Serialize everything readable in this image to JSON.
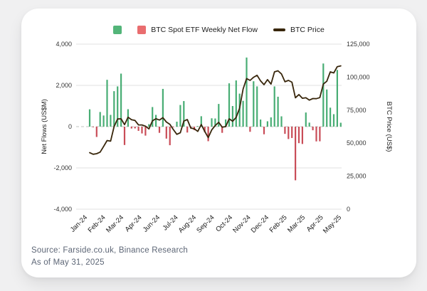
{
  "page": {
    "background_color": "#f0f0f1",
    "card_background": "#ffffff"
  },
  "legend": {
    "flow_label": "BTC Spot ETF Weekly Net Flow",
    "price_label": "BTC Price",
    "positive_color": "#53b579",
    "negative_color": "#e96d6f",
    "bar_positive_color": "#48ad74",
    "bar_negative_color": "#c94d58",
    "price_line_color": "#38260b"
  },
  "footer": {
    "source": "Source: Farside.co.uk, Binance Research",
    "as_of": "As of May 31, 2025"
  },
  "chart_data": {
    "type": "bar",
    "title": "",
    "grid": "horizontal",
    "legend_position": "top-center",
    "x_tick_labels": [
      "Jan-24",
      "Feb-24",
      "Mar-24",
      "Apr-24",
      "Jun-24",
      "Jul-24",
      "Aug-24",
      "Sep-24",
      "Oct-24",
      "Nov-24",
      "Dec-24",
      "Feb-25",
      "Mar-25",
      "Apr-25",
      "May-25"
    ],
    "left_axis": {
      "title": "Net Flows (US$M)",
      "min": -4000,
      "max": 4000,
      "tick_values": [
        4000,
        2000,
        0,
        -2000,
        -4000
      ],
      "tick_labels": [
        "4,000",
        "2,000",
        "0",
        "-2,000",
        "-4,000"
      ]
    },
    "right_axis": {
      "title": "BTC Price (US$)",
      "min": 0,
      "max": 125000,
      "tick_values": [
        125000,
        100000,
        75000,
        50000,
        25000,
        0
      ],
      "tick_labels": [
        "125,000",
        "100,000",
        "75,000",
        "50,000",
        "25,000",
        "0"
      ]
    },
    "series": [
      {
        "name": "BTC Spot ETF Weekly Net Flow",
        "type": "bar",
        "axis": "left",
        "unit": "US$M",
        "values": [
          840,
          -30,
          -500,
          710,
          540,
          2270,
          570,
          1720,
          1950,
          2570,
          -890,
          845,
          -90,
          -85,
          -205,
          -330,
          -435,
          120,
          950,
          570,
          -300,
          1830,
          -580,
          -900,
          -30,
          240,
          1050,
          1240,
          -285,
          -80,
          -170,
          30,
          505,
          -275,
          -705,
          405,
          395,
          1100,
          -300,
          350,
          2100,
          1000,
          2240,
          1600,
          1250,
          3350,
          -250,
          2200,
          1950,
          345,
          -370,
          260,
          450,
          1950,
          1450,
          500,
          -350,
          -600,
          -550,
          -2600,
          -800,
          -840,
          685,
          195,
          -175,
          -715,
          -710,
          3060,
          1800,
          920,
          605,
          2750,
          190
        ]
      },
      {
        "name": "BTC Price",
        "type": "line",
        "axis": "right",
        "unit": "US$",
        "values": [
          42800,
          41600,
          42000,
          43200,
          47500,
          52000,
          51500,
          62500,
          68300,
          68400,
          64000,
          69600,
          67800,
          67200,
          63800,
          63800,
          62900,
          60800,
          66900,
          68500,
          67500,
          69300,
          66000,
          64200,
          60300,
          56700,
          57900,
          66700,
          67900,
          61400,
          60900,
          58900,
          64100,
          58900,
          54200,
          60000,
          63300,
          65800,
          62100,
          62500,
          68400,
          66600,
          69500,
          76500,
          91000,
          98900,
          97500,
          99900,
          101400,
          97200,
          94300,
          98100,
          94700,
          104000,
          104800,
          102400,
          96500,
          97500,
          96200,
          84400,
          86800,
          84000,
          84400,
          82600,
          83800,
          83700,
          84500,
          94700,
          96900,
          104000,
          103200,
          107900,
          108500
        ]
      }
    ]
  }
}
